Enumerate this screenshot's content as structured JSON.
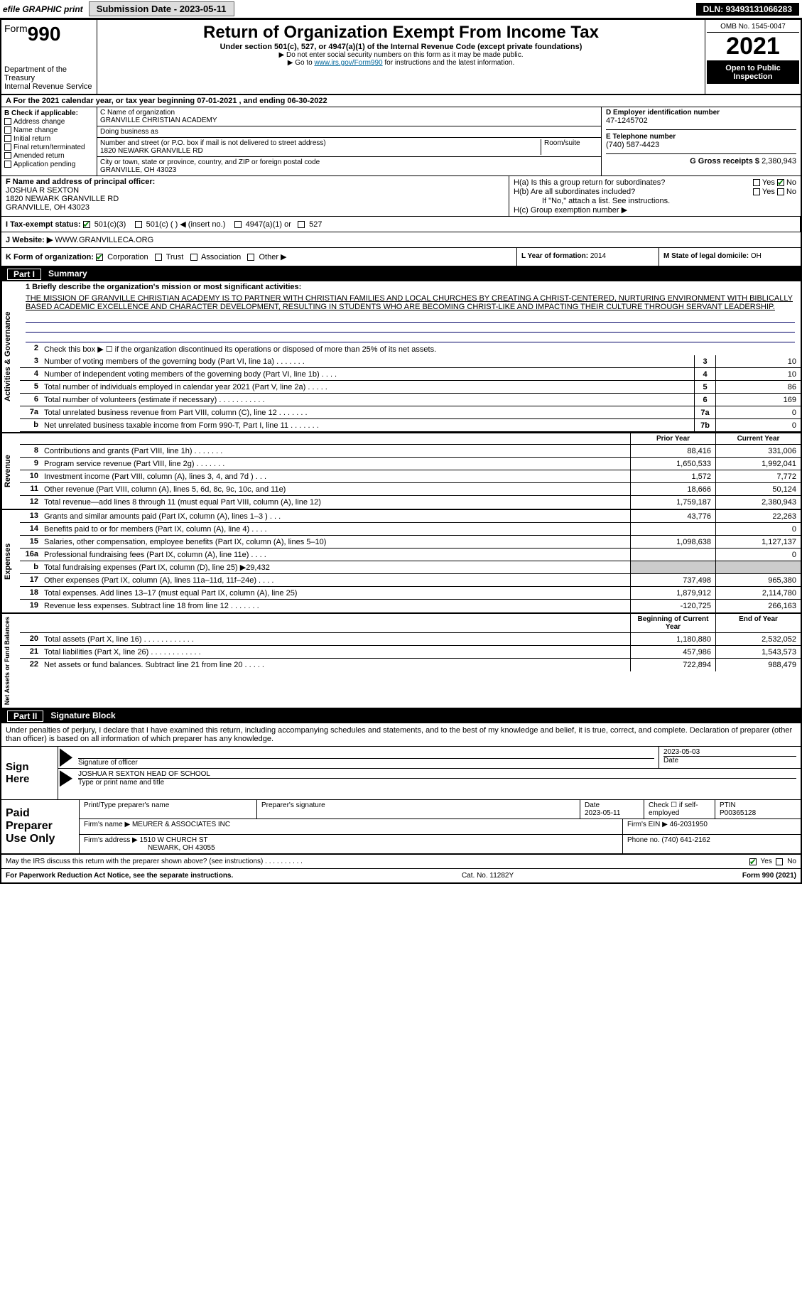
{
  "topbar": {
    "efile": "efile GRAPHIC print",
    "submission_label": "Submission Date - 2023-05-11",
    "dln": "DLN: 93493131066283"
  },
  "header": {
    "form_word": "Form",
    "form_num": "990",
    "dept": "Department of the Treasury",
    "irs": "Internal Revenue Service",
    "title": "Return of Organization Exempt From Income Tax",
    "subtitle": "Under section 501(c), 527, or 4947(a)(1) of the Internal Revenue Code (except private foundations)",
    "note1": "▶ Do not enter social security numbers on this form as it may be made public.",
    "note2_pre": "▶ Go to ",
    "note2_link": "www.irs.gov/Form990",
    "note2_post": " for instructions and the latest information.",
    "omb": "OMB No. 1545-0047",
    "year": "2021",
    "inspect": "Open to Public Inspection"
  },
  "row_a": "A For the 2021 calendar year, or tax year beginning 07-01-2021    , and ending 06-30-2022",
  "col_b": {
    "title": "B Check if applicable:",
    "items": [
      "Address change",
      "Name change",
      "Initial return",
      "Final return/terminated",
      "Amended return",
      "Application pending"
    ]
  },
  "col_c": {
    "name_label": "C Name of organization",
    "name": "GRANVILLE CHRISTIAN ACADEMY",
    "dba_label": "Doing business as",
    "dba": "",
    "addr_label": "Number and street (or P.O. box if mail is not delivered to street address)",
    "room_label": "Room/suite",
    "addr": "1820 NEWARK GRANVILLE RD",
    "city_label": "City or town, state or province, country, and ZIP or foreign postal code",
    "city": "GRANVILLE, OH  43023"
  },
  "col_d": {
    "ein_label": "D Employer identification number",
    "ein": "47-1245702",
    "phone_label": "E Telephone number",
    "phone": "(740) 587-4423",
    "gross_label": "G Gross receipts $",
    "gross": "2,380,943"
  },
  "col_f": {
    "label": "F  Name and address of principal officer:",
    "name": "JOSHUA R SEXTON",
    "addr1": "1820 NEWARK GRANVILLE RD",
    "addr2": "GRANVILLE, OH  43023"
  },
  "col_h": {
    "h_a_label": "H(a)  Is this a group return for subordinates?",
    "h_a_yes": "Yes",
    "h_a_no": "No",
    "h_b_label": "H(b)  Are all subordinates included?",
    "h_b_note": "If \"No,\" attach a list. See instructions.",
    "h_c_label": "H(c)  Group exemption number ▶"
  },
  "row_i": {
    "label": "I   Tax-exempt status:",
    "opt1": "501(c)(3)",
    "opt2": "501(c) (  ) ◀ (insert no.)",
    "opt3": "4947(a)(1) or",
    "opt4": "527"
  },
  "row_j": {
    "label": "J   Website: ▶",
    "value": "WWW.GRANVILLECA.ORG"
  },
  "row_k": {
    "label": "K Form of organization:",
    "opts": [
      "Corporation",
      "Trust",
      "Association",
      "Other ▶"
    ]
  },
  "row_l": {
    "label": "L Year of formation:",
    "value": "2014"
  },
  "row_m": {
    "label": "M State of legal domicile:",
    "value": "OH"
  },
  "part1": {
    "label": "Part I",
    "title": "Summary"
  },
  "mission_label": "1  Briefly describe the organization's mission or most significant activities:",
  "mission": "THE MISSION OF GRANVILLE CHRISTIAN ACADEMY IS TO PARTNER WITH CHRISTIAN FAMILIES AND LOCAL CHURCHES BY CREATING A CHRIST-CENTERED, NURTURING ENVIRONMENT WITH BIBLICALLY BASED ACADEMIC EXCELLENCE AND CHARACTER DEVELOPMENT, RESULTING IN STUDENTS WHO ARE BECOMING CHRIST-LIKE AND IMPACTING THEIR CULTURE THROUGH SERVANT LEADERSHIP.",
  "sections": {
    "governance": {
      "side": "Activities & Governance",
      "line2": "Check this box ▶ ☐  if the organization discontinued its operations or disposed of more than 25% of its net assets.",
      "lines": [
        {
          "n": "3",
          "desc": "Number of voting members of the governing body (Part VI, line 1a)   .    .    .    .    .    .    .",
          "box": "3",
          "val": "10"
        },
        {
          "n": "4",
          "desc": "Number of independent voting members of the governing body (Part VI, line 1b)    .    .    .    .",
          "box": "4",
          "val": "10"
        },
        {
          "n": "5",
          "desc": "Total number of individuals employed in calendar year 2021 (Part V, line 2a)   .    .    .    .    .",
          "box": "5",
          "val": "86"
        },
        {
          "n": "6",
          "desc": "Total number of volunteers (estimate if necessary)    .    .    .    .    .    .    .    .    .    .    .",
          "box": "6",
          "val": "169"
        },
        {
          "n": "7a",
          "desc": "Total unrelated business revenue from Part VIII, column (C), line 12   .    .    .    .    .    .    .",
          "box": "7a",
          "val": "0"
        },
        {
          "n": "b",
          "desc": "Net unrelated business taxable income from Form 990-T, Part I, line 11   .    .    .    .    .    .    .",
          "box": "7b",
          "val": "0"
        }
      ]
    },
    "revenue": {
      "side": "Revenue",
      "header_prior": "Prior Year",
      "header_current": "Current Year",
      "lines": [
        {
          "n": "8",
          "desc": "Contributions and grants (Part VIII, line 1h)    .    .    .    .    .    .    .",
          "prior": "88,416",
          "curr": "331,006"
        },
        {
          "n": "9",
          "desc": "Program service revenue (Part VIII, line 2g)    .    .    .    .    .    .    .",
          "prior": "1,650,533",
          "curr": "1,992,041"
        },
        {
          "n": "10",
          "desc": "Investment income (Part VIII, column (A), lines 3, 4, and 7d )    .    .    .",
          "prior": "1,572",
          "curr": "7,772"
        },
        {
          "n": "11",
          "desc": "Other revenue (Part VIII, column (A), lines 5, 6d, 8c, 9c, 10c, and 11e)",
          "prior": "18,666",
          "curr": "50,124"
        },
        {
          "n": "12",
          "desc": "Total revenue—add lines 8 through 11 (must equal Part VIII, column (A), line 12)",
          "prior": "1,759,187",
          "curr": "2,380,943"
        }
      ]
    },
    "expenses": {
      "side": "Expenses",
      "lines": [
        {
          "n": "13",
          "desc": "Grants and similar amounts paid (Part IX, column (A), lines 1–3 )   .    .    .",
          "prior": "43,776",
          "curr": "22,263"
        },
        {
          "n": "14",
          "desc": "Benefits paid to or for members (Part IX, column (A), line 4)   .    .    .    .",
          "prior": "",
          "curr": "0"
        },
        {
          "n": "15",
          "desc": "Salaries, other compensation, employee benefits (Part IX, column (A), lines 5–10)",
          "prior": "1,098,638",
          "curr": "1,127,137"
        },
        {
          "n": "16a",
          "desc": "Professional fundraising fees (Part IX, column (A), line 11e)   .    .    .    .",
          "prior": "",
          "curr": "0"
        },
        {
          "n": "b",
          "desc": "Total fundraising expenses (Part IX, column (D), line 25) ▶29,432",
          "prior": "shaded",
          "curr": "shaded"
        },
        {
          "n": "17",
          "desc": "Other expenses (Part IX, column (A), lines 11a–11d, 11f–24e)   .    .    .    .",
          "prior": "737,498",
          "curr": "965,380"
        },
        {
          "n": "18",
          "desc": "Total expenses. Add lines 13–17 (must equal Part IX, column (A), line 25)",
          "prior": "1,879,912",
          "curr": "2,114,780"
        },
        {
          "n": "19",
          "desc": "Revenue less expenses. Subtract line 18 from line 12   .    .    .    .    .    .    .",
          "prior": "-120,725",
          "curr": "266,163"
        }
      ]
    },
    "netassets": {
      "side": "Net Assets or Fund Balances",
      "header_begin": "Beginning of Current Year",
      "header_end": "End of Year",
      "lines": [
        {
          "n": "20",
          "desc": "Total assets (Part X, line 16)   .    .    .    .    .    .    .    .    .    .    .    .",
          "prior": "1,180,880",
          "curr": "2,532,052"
        },
        {
          "n": "21",
          "desc": "Total liabilities (Part X, line 26)   .    .    .    .    .    .    .    .    .    .    .    .",
          "prior": "457,986",
          "curr": "1,543,573"
        },
        {
          "n": "22",
          "desc": "Net assets or fund balances. Subtract line 21 from line 20   .    .    .    .    .",
          "prior": "722,894",
          "curr": "988,479"
        }
      ]
    }
  },
  "part2": {
    "label": "Part II",
    "title": "Signature Block"
  },
  "sig": {
    "penalties": "Under penalties of perjury, I declare that I have examined this return, including accompanying schedules and statements, and to the best of my knowledge and belief, it is true, correct, and complete. Declaration of preparer (other than officer) is based on all information of which preparer has any knowledge.",
    "sign_here": "Sign Here",
    "sig_officer": "Signature of officer",
    "date": "2023-05-03",
    "date_label": "Date",
    "name": "JOSHUA R SEXTON  HEAD OF SCHOOL",
    "name_label": "Type or print name and title"
  },
  "prep": {
    "label": "Paid Preparer Use Only",
    "h1": "Print/Type preparer's name",
    "h2": "Preparer's signature",
    "h3_label": "Date",
    "h3": "2023-05-11",
    "h4": "Check ☐ if self-employed",
    "h5_label": "PTIN",
    "h5": "P00365128",
    "firm_name_label": "Firm's name    ▶",
    "firm_name": "MEURER & ASSOCIATES INC",
    "firm_ein_label": "Firm's EIN ▶",
    "firm_ein": "46-2031950",
    "firm_addr_label": "Firm's address ▶",
    "firm_addr1": "1510 W CHURCH ST",
    "firm_addr2": "NEWARK, OH  43055",
    "firm_phone_label": "Phone no.",
    "firm_phone": "(740) 641-2162"
  },
  "footer": {
    "discuss": "May the IRS discuss this return with the preparer shown above? (see instructions)    .    .    .    .    .    .    .    .    .    .",
    "yes": "Yes",
    "no": "No",
    "paperwork": "For Paperwork Reduction Act Notice, see the separate instructions.",
    "cat": "Cat. No. 11282Y",
    "form": "Form 990 (2021)"
  }
}
